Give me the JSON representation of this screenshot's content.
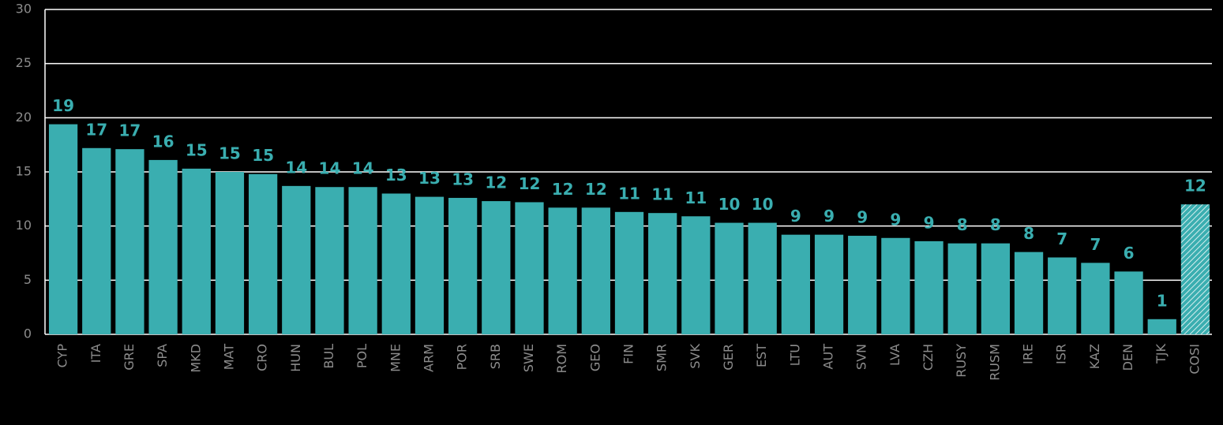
{
  "chart_data": {
    "type": "bar",
    "categories": [
      "CYP",
      "ITA",
      "GRE",
      "SPA",
      "MKD",
      "MAT",
      "CRO",
      "HUN",
      "BUL",
      "POL",
      "MNE",
      "ARM",
      "POR",
      "SRB",
      "SWE",
      "ROM",
      "GEO",
      "FIN",
      "SMR",
      "SVK",
      "GER",
      "EST",
      "LTU",
      "AUT",
      "SVN",
      "LVA",
      "CZH",
      "RUSY",
      "RUSM",
      "IRE",
      "ISR",
      "KAZ",
      "DEN",
      "TJK",
      "COSI"
    ],
    "values": [
      19.4,
      17.2,
      17.1,
      16.1,
      15.3,
      15.0,
      14.8,
      13.7,
      13.6,
      13.6,
      13.0,
      12.7,
      12.6,
      12.3,
      12.2,
      11.7,
      11.7,
      11.3,
      11.2,
      10.9,
      10.3,
      10.3,
      9.2,
      9.2,
      9.1,
      8.9,
      8.6,
      8.4,
      8.4,
      7.6,
      7.1,
      6.6,
      5.8,
      1.4,
      12.0
    ],
    "value_labels": [
      "19",
      "17",
      "17",
      "16",
      "15",
      "15",
      "15",
      "14",
      "14",
      "14",
      "13",
      "13",
      "13",
      "12",
      "12",
      "12",
      "12",
      "11",
      "11",
      "11",
      "10",
      "10",
      "9",
      "9",
      "9",
      "9",
      "9",
      "8",
      "8",
      "8",
      "7",
      "7",
      "6",
      "1",
      "12"
    ],
    "color": "#3aaeb0",
    "ylim": [
      0,
      30
    ],
    "yticks": [
      0,
      5,
      10,
      15,
      20,
      25,
      30
    ],
    "grid": true
  }
}
